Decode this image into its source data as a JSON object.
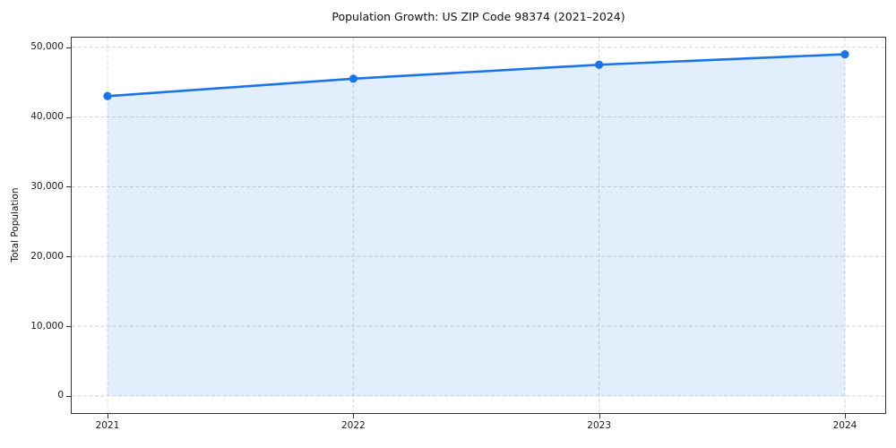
{
  "chart_data": {
    "type": "area",
    "title": "Population Growth: US ZIP Code 98374 (2021–2024)",
    "xlabel": "",
    "ylabel": "Total Population",
    "x": [
      "2021",
      "2022",
      "2023",
      "2024"
    ],
    "series": [
      {
        "name": "Total Population",
        "values": [
          43000,
          45500,
          47500,
          49000
        ]
      }
    ],
    "ylim": [
      0,
      50000
    ],
    "yticks": {
      "values": [
        0,
        10000,
        20000,
        30000,
        40000,
        50000
      ],
      "labels": [
        "0",
        "10,000",
        "20,000",
        "30,000",
        "40,000",
        "50,000"
      ]
    },
    "xtick_labels": [
      "2021",
      "2022",
      "2023",
      "2024"
    ],
    "grid": true,
    "legend_position": "none",
    "marker": "circle",
    "colors": {
      "line": "#1a73e8",
      "fill": "rgba(26,115,232,0.12)",
      "grid": "#d4d4d4",
      "spine": "#333333",
      "text": "#1a1a1a",
      "background": "#ffffff"
    }
  }
}
